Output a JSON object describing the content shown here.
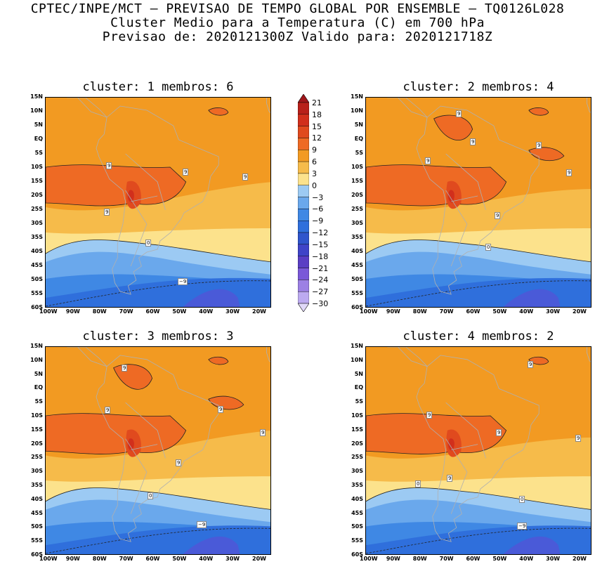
{
  "header": {
    "line1": "CPTEC/INPE/MCT – PREVISAO DE TEMPO GLOBAL POR ENSEMBLE – TQ0126L028",
    "line2": "Cluster Medio para a Temperatura (C) em 700 hPa",
    "line3": "Previsao de: 2020121300Z    Valido para: 2020121718Z"
  },
  "colors": {
    "band_21": "#b8201a",
    "band_18": "#d12f1c",
    "band_15": "#e04a1e",
    "band_12": "#ee6a24",
    "band_9": "#f29a22",
    "band_6": "#f6bb4a",
    "band_3": "#fce28c",
    "band_0": "#9ccaf3",
    "band_m3": "#6aa8ec",
    "band_m6": "#3f88e4",
    "band_m9": "#2f6fdc",
    "band_m12": "#4a5ad8",
    "coast": "#b0b0b0"
  },
  "colorbar": {
    "labels": [
      "21",
      "18",
      "15",
      "12",
      "9",
      "6",
      "3",
      "0",
      "−3",
      "−6",
      "−9",
      "−12",
      "−15",
      "−18",
      "−21",
      "−24",
      "−27",
      "−30"
    ]
  },
  "axes": {
    "lat_ticks": [
      "15N",
      "10N",
      "5N",
      "EQ",
      "5S",
      "10S",
      "15S",
      "20S",
      "25S",
      "30S",
      "35S",
      "40S",
      "45S",
      "50S",
      "55S",
      "60S"
    ],
    "lon_ticks": [
      "100W",
      "90W",
      "80W",
      "70W",
      "60W",
      "50W",
      "40W",
      "30W",
      "20W"
    ]
  },
  "panels": [
    {
      "title": "cluster: 1   membros: 6",
      "labels": [
        "9",
        "9",
        "9",
        "9",
        "0",
        "−9"
      ]
    },
    {
      "title": "cluster: 2   membros: 4",
      "labels": [
        "9",
        "9",
        "9",
        "9",
        "9",
        "9",
        "0"
      ]
    },
    {
      "title": "cluster: 3   membros: 3",
      "labels": [
        "9",
        "9",
        "9",
        "9",
        "9",
        "0",
        "−9"
      ]
    },
    {
      "title": "cluster: 4   membros: 2",
      "labels": [
        "9",
        "9",
        "9",
        "9",
        "9",
        "0",
        "0",
        "−9"
      ]
    }
  ]
}
